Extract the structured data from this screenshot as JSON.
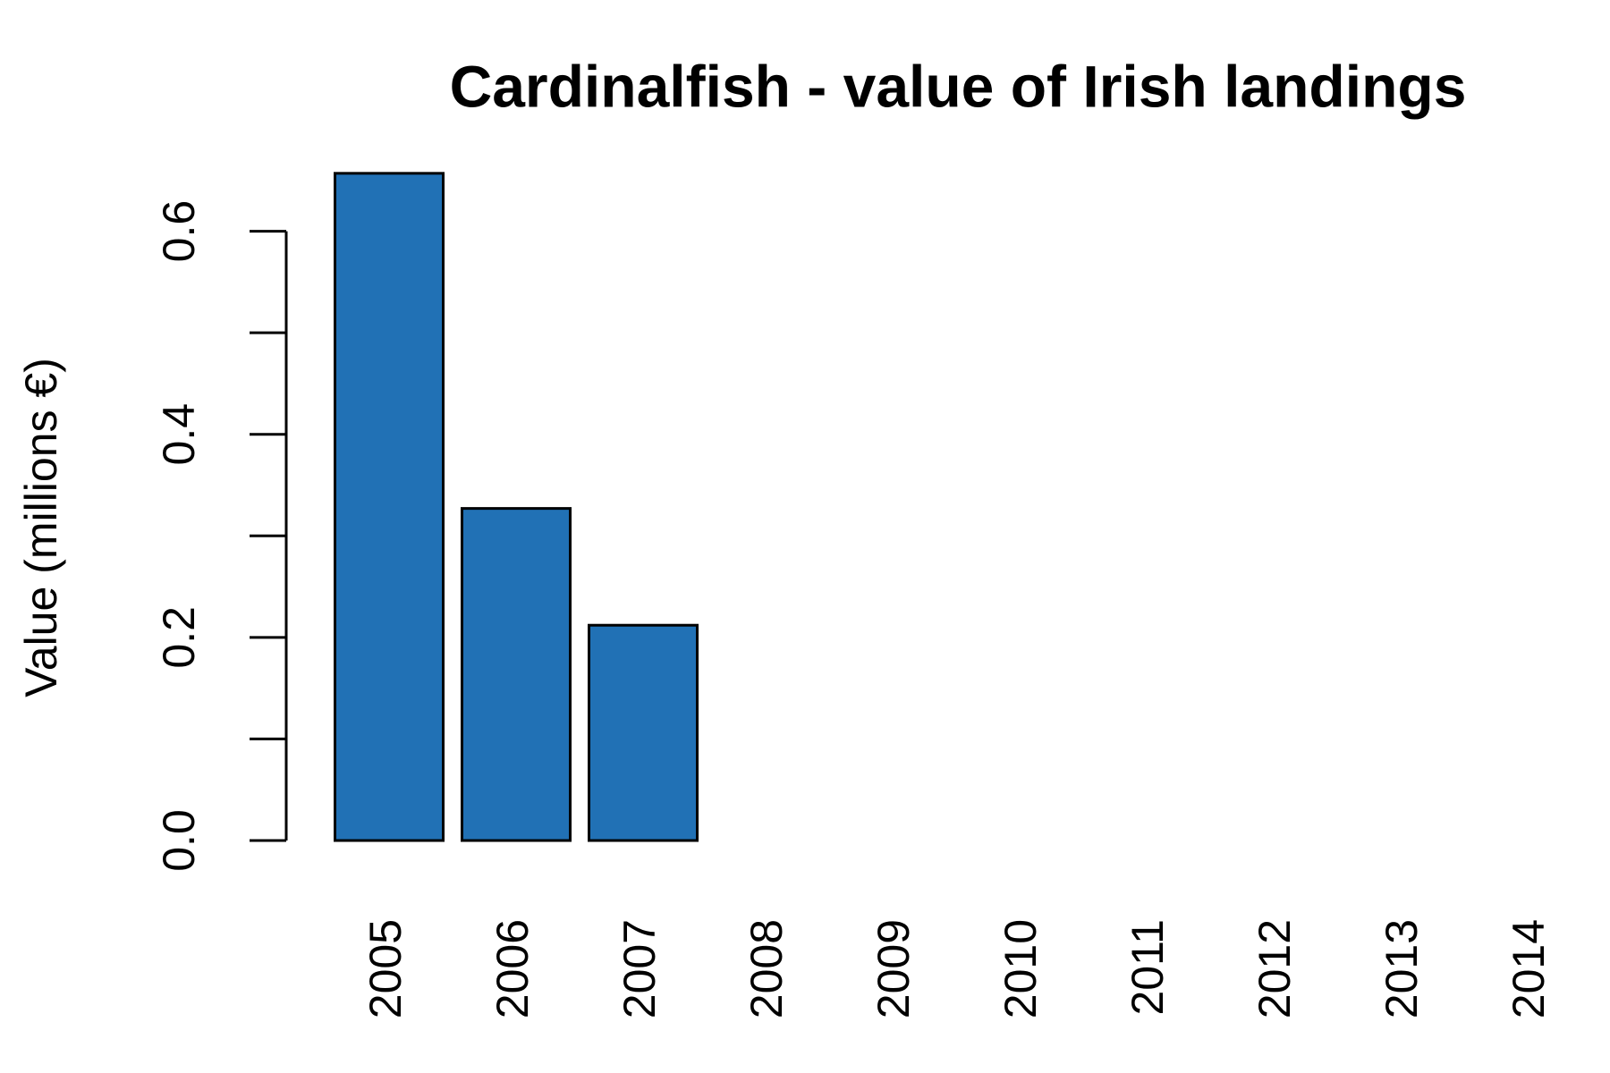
{
  "chart_data": {
    "type": "bar",
    "title": "Cardinalfish - value of Irish landings",
    "y_label": "Value (millions €)",
    "categories": [
      "2005",
      "2006",
      "2007",
      "2008",
      "2009",
      "2010",
      "2011",
      "2012",
      "2013",
      "2014"
    ],
    "values": [
      0.657,
      0.327,
      0.212,
      0,
      0,
      0,
      0,
      0,
      0,
      0
    ],
    "color": "#2171b5",
    "ylim": [
      0,
      0.7
    ],
    "yticks": [
      {
        "value": 0,
        "label": "0.0"
      },
      0.2,
      0.4,
      0.6
    ],
    "yminor_ticks": [
      0.1,
      0.3,
      0.5
    ],
    "grid": false
  }
}
